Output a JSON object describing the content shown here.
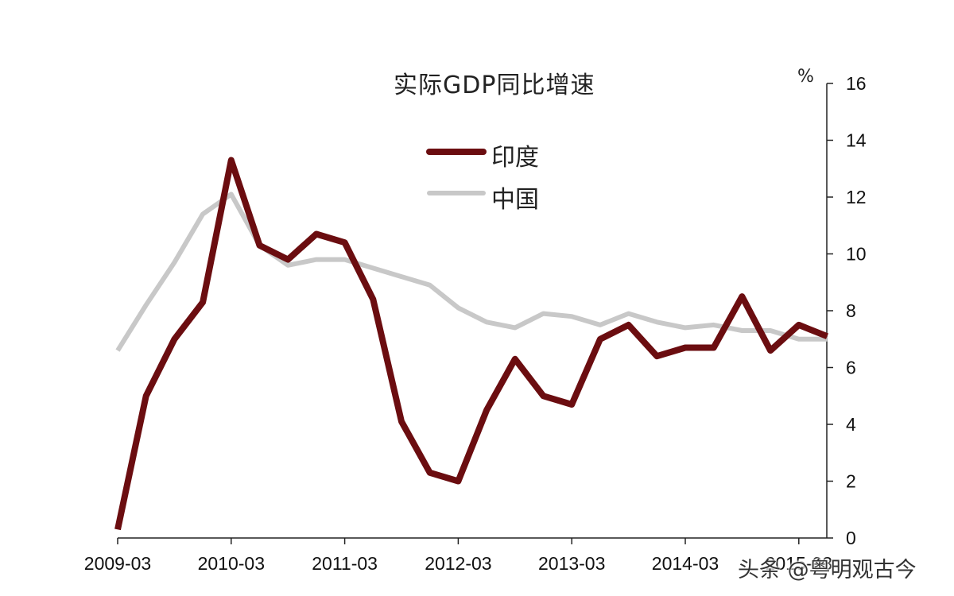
{
  "chart_data": {
    "type": "line",
    "title": "实际GDP同比增速",
    "ylabel": "%",
    "ylim": [
      0,
      16
    ],
    "yticks": [
      0,
      2,
      4,
      6,
      8,
      10,
      12,
      14,
      16
    ],
    "x_tick_labels": [
      "2009-03",
      "2010-03",
      "2011-03",
      "2012-03",
      "2013-03",
      "2014-03",
      "2015-03"
    ],
    "x": [
      "2009-03",
      "2009-06",
      "2009-09",
      "2009-12",
      "2010-03",
      "2010-06",
      "2010-09",
      "2010-12",
      "2011-03",
      "2011-06",
      "2011-09",
      "2011-12",
      "2012-03",
      "2012-06",
      "2012-09",
      "2012-12",
      "2013-03",
      "2013-06",
      "2013-09",
      "2013-12",
      "2014-03",
      "2014-06",
      "2014-09",
      "2014-12",
      "2015-03",
      "2015-06"
    ],
    "series": [
      {
        "name": "印度",
        "color": "#6b0d10",
        "values": [
          0.3,
          5.0,
          7.0,
          8.3,
          13.3,
          10.3,
          9.8,
          10.7,
          10.4,
          8.4,
          4.1,
          2.3,
          2.0,
          4.5,
          6.3,
          5.0,
          4.7,
          7.0,
          7.5,
          6.4,
          6.7,
          6.7,
          8.5,
          6.6,
          7.5,
          7.1
        ]
      },
      {
        "name": "中国",
        "color": "#c8c8c8",
        "values": [
          6.6,
          8.2,
          9.7,
          11.4,
          12.1,
          10.3,
          9.6,
          9.8,
          9.8,
          9.5,
          9.2,
          8.9,
          8.1,
          7.6,
          7.4,
          7.9,
          7.8,
          7.5,
          7.9,
          7.6,
          7.4,
          7.5,
          7.3,
          7.3,
          7.0,
          7.0
        ]
      }
    ],
    "legend_position": "upper-center",
    "grid": false
  },
  "watermark": "头条 @粤明观古今"
}
